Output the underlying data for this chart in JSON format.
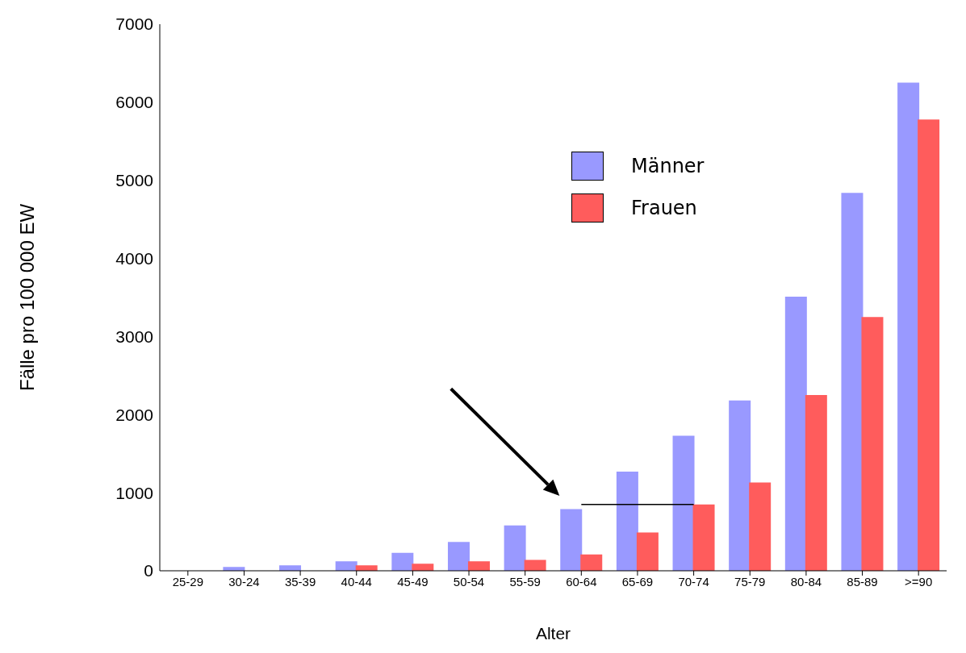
{
  "chart_data": {
    "type": "bar",
    "xlabel": "Alter",
    "ylabel": "Fälle pro 100 000 EW",
    "categories": [
      "25-29",
      "30-24",
      "35-39",
      "40-44",
      "45-49",
      "50-54",
      "55-59",
      "60-64",
      "65-69",
      "70-74",
      "75-79",
      "80-84",
      "85-89",
      ">=90"
    ],
    "series": [
      {
        "name": "Männer",
        "color": "#9999ff",
        "values": [
          0,
          40,
          60,
          110,
          220,
          360,
          570,
          780,
          1260,
          1720,
          2170,
          3500,
          4830,
          6240
        ]
      },
      {
        "name": "Frauen",
        "color": "#ff5c5c",
        "values": [
          0,
          0,
          0,
          60,
          80,
          110,
          130,
          200,
          480,
          840,
          1120,
          2240,
          3240,
          5770
        ]
      },
      {
        "type": "line",
        "color": "#000000",
        "x": [
          "60-64",
          "70-74"
        ],
        "values": [
          850,
          850
        ]
      }
    ],
    "ylim": [
      0,
      7000
    ],
    "yticks": [
      0,
      1000,
      2000,
      3000,
      4000,
      5000,
      6000,
      7000
    ],
    "grid": false,
    "legend": "top right",
    "marker": "none"
  }
}
